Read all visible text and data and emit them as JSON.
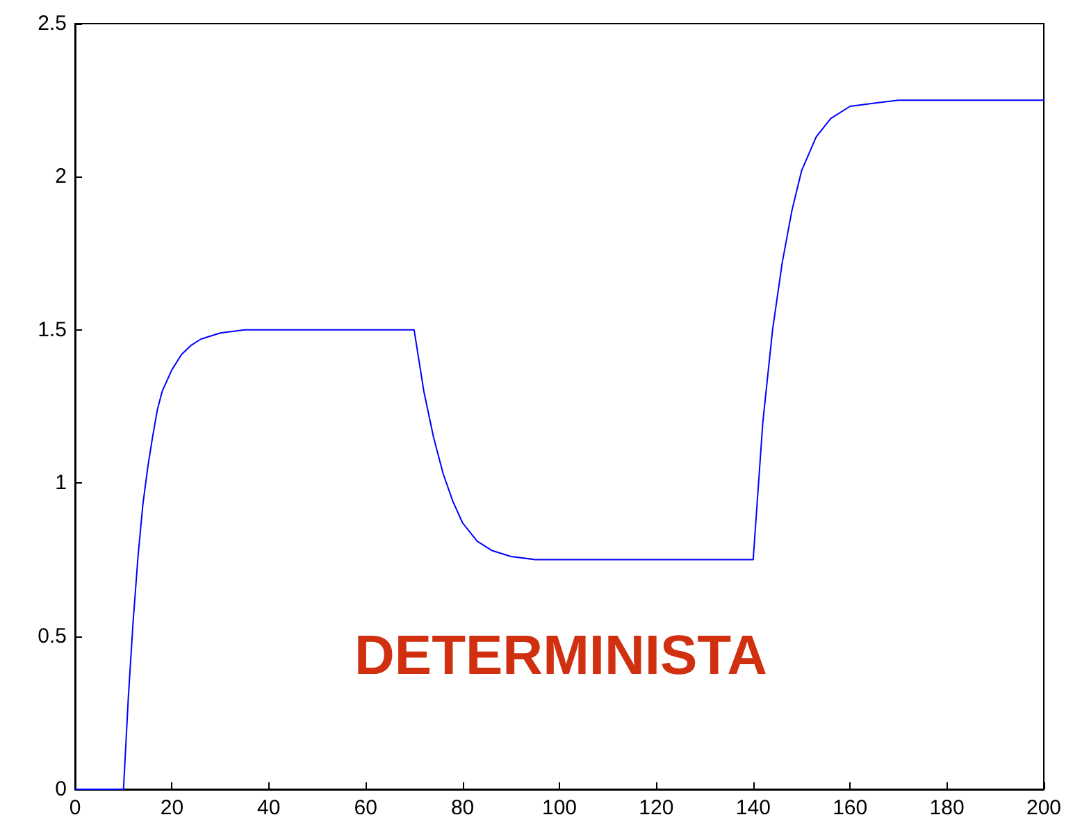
{
  "chart_data": {
    "type": "line",
    "x": [
      0,
      10,
      11,
      12,
      13,
      14,
      15,
      16,
      17,
      18,
      20,
      22,
      24,
      26,
      30,
      35,
      70,
      72,
      74,
      76,
      78,
      80,
      83,
      86,
      90,
      95,
      140,
      142,
      144,
      146,
      148,
      150,
      153,
      156,
      160,
      165,
      170,
      200
    ],
    "series": [
      {
        "color": "#0000ff",
        "values": [
          0,
          0,
          0.3,
          0.55,
          0.76,
          0.93,
          1.05,
          1.15,
          1.24,
          1.3,
          1.37,
          1.42,
          1.45,
          1.47,
          1.49,
          1.5,
          1.5,
          1.3,
          1.15,
          1.03,
          0.94,
          0.87,
          0.81,
          0.78,
          0.76,
          0.75,
          0.75,
          1.2,
          1.5,
          1.72,
          1.89,
          2.02,
          2.13,
          2.19,
          2.23,
          2.24,
          2.25,
          2.25
        ]
      }
    ],
    "xlim": [
      0,
      200
    ],
    "xticks": [
      0,
      20,
      40,
      60,
      80,
      100,
      120,
      140,
      160,
      180,
      200
    ],
    "ylim": [
      0,
      2.5
    ],
    "yticks": [
      0,
      0.5,
      1,
      1.5,
      2,
      2.5
    ],
    "marker": "none",
    "line_style": "solid",
    "annotations": [
      "DETERMINISTA"
    ]
  }
}
